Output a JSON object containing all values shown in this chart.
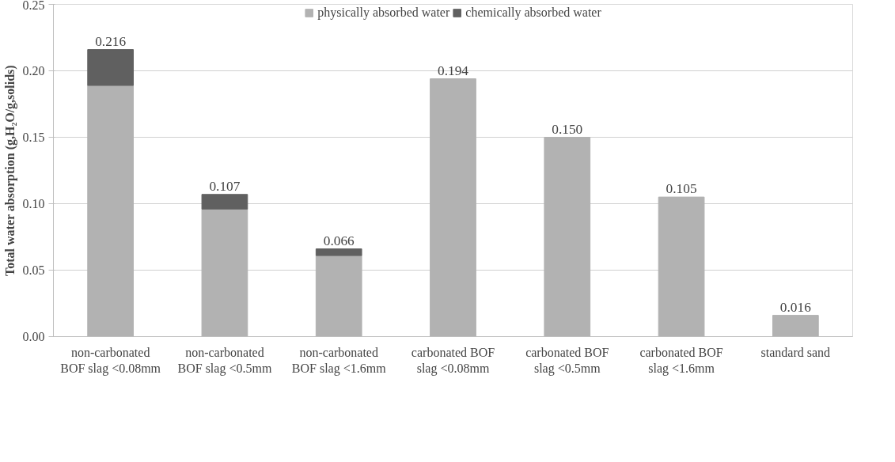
{
  "chart_data": {
    "type": "bar",
    "stacked": true,
    "ylabel": "Total water absorption (g,H₂O/g,solids)",
    "categories": [
      "non-carbonated BOF slag <0.08mm",
      "non-carbonated BOF slag <0.5mm",
      "non-carbonated BOF slag <1.6mm",
      "carbonated BOF slag <0.08mm",
      "carbonated BOF slag <0.5mm",
      "carbonated BOF slag <1.6mm",
      "standard sand"
    ],
    "series": [
      {
        "name": "physically absorbed water",
        "color": "#b2b2b2",
        "values": [
          0.189,
          0.096,
          0.061,
          0.194,
          0.15,
          0.105,
          0.016
        ]
      },
      {
        "name": "chemically absorbed water",
        "color": "#606060",
        "values": [
          0.027,
          0.011,
          0.005,
          null,
          null,
          null,
          null
        ]
      }
    ],
    "totals": [
      "0.216",
      "0.107",
      "0.066",
      "0.194",
      "0.150",
      "0.105",
      "0.016"
    ],
    "ylim": [
      0,
      0.25
    ],
    "yticks": [
      {
        "value": 0,
        "label": "0.00"
      },
      {
        "value": 0.05,
        "label": "0.05"
      },
      {
        "value": 0.1,
        "label": "0.10"
      },
      {
        "value": 0.15,
        "label": "0.15"
      },
      {
        "value": 0.2,
        "label": "0.20"
      },
      {
        "value": 0.25,
        "label": "0.25"
      }
    ],
    "grid": "y",
    "legend": "top"
  }
}
